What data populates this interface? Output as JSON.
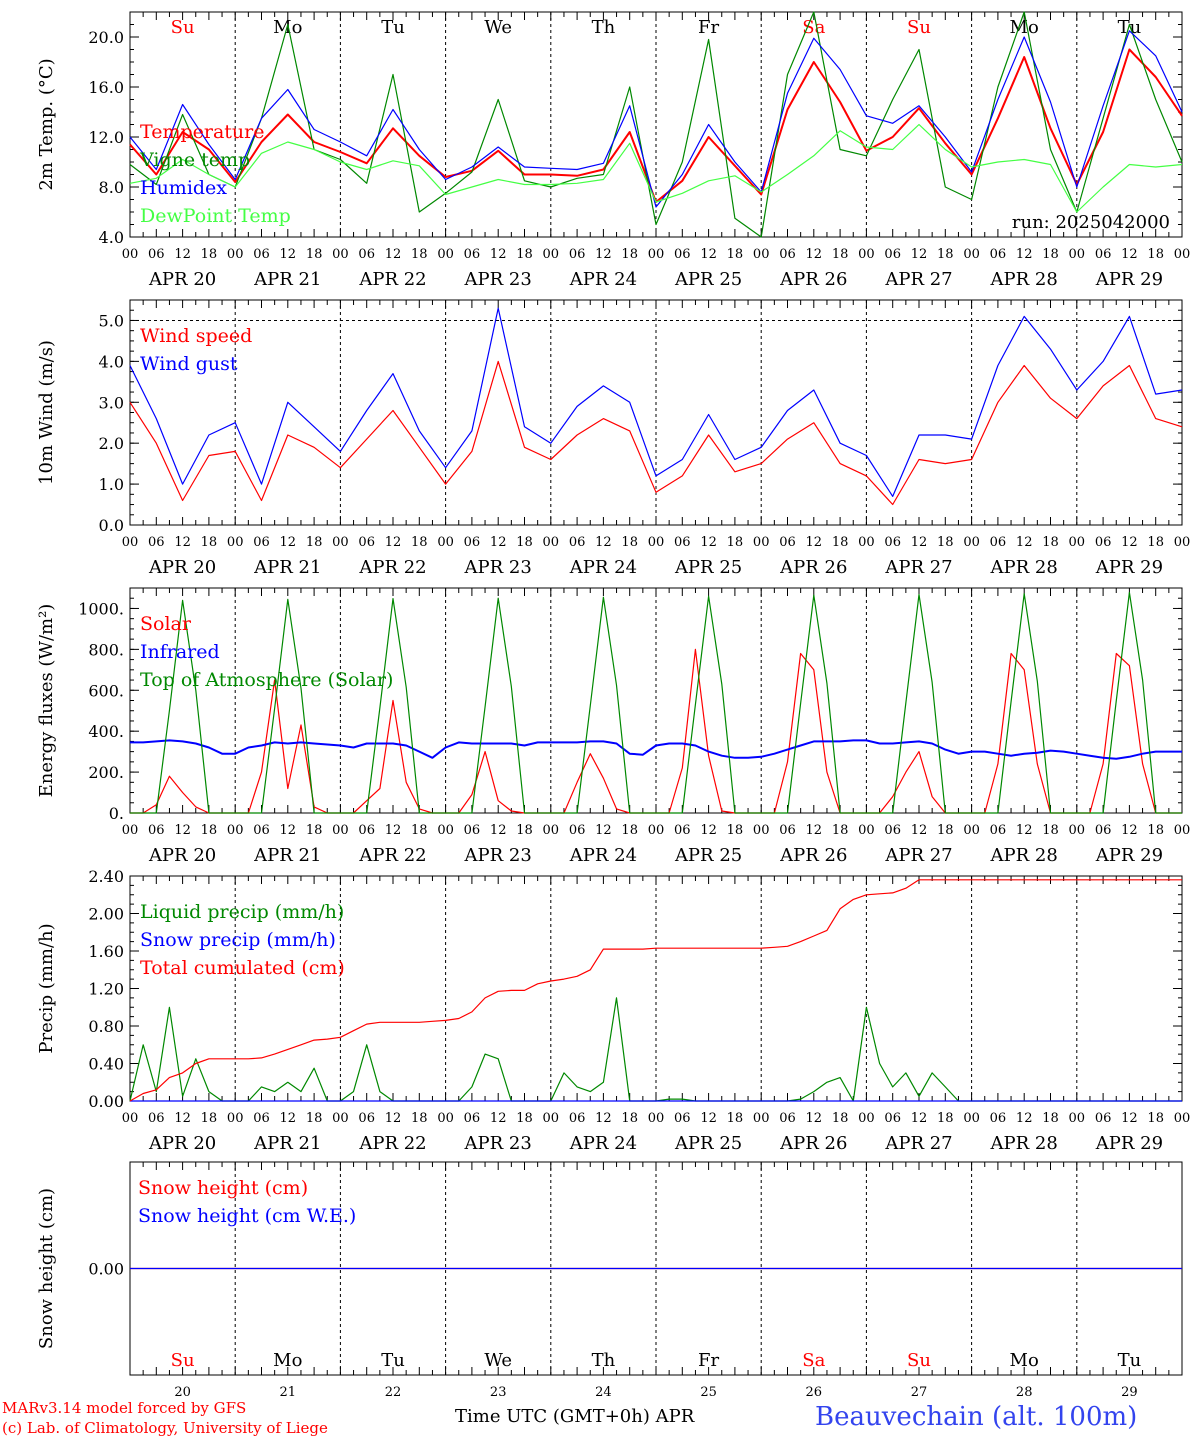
{
  "chart_data": [
    {
      "type": "line",
      "ylabel": "2m Temp. (°C)",
      "ylim": [
        4.0,
        22.0
      ],
      "yticks": [
        "20.0",
        "16.0",
        "12.0",
        "8.0",
        "4.0"
      ],
      "annotation": "run: 2025042000",
      "x_hours": [
        0,
        6,
        12,
        18,
        24,
        30,
        36,
        42,
        48,
        54,
        60,
        66,
        72,
        78,
        84,
        90,
        96,
        102,
        108,
        114,
        120,
        126,
        132,
        138,
        144,
        150,
        156,
        162,
        168,
        174,
        180,
        186,
        192,
        198,
        204,
        210,
        216,
        222,
        228,
        234,
        240
      ],
      "series": [
        {
          "name": "Temperature",
          "color": "#ff0000",
          "values": [
            11.4,
            9.0,
            12.4,
            11.0,
            8.4,
            11.6,
            13.8,
            11.6,
            10.8,
            9.9,
            12.7,
            10.5,
            8.8,
            9.3,
            10.9,
            9.0,
            9.0,
            8.9,
            9.4,
            12.4,
            6.8,
            8.5,
            12.0,
            9.7,
            7.4,
            14.2,
            18.0,
            14.8,
            10.9,
            12.0,
            14.3,
            11.5,
            9.0,
            13.5,
            18.4,
            12.7,
            8.2,
            12.4,
            19.0,
            16.8,
            13.7
          ]
        },
        {
          "name": "Vigne temp",
          "color": "#008800",
          "values": [
            9.8,
            8.2,
            13.8,
            9.0,
            8.0,
            13.5,
            21.0,
            11.0,
            10.2,
            8.3,
            17.0,
            6.0,
            7.5,
            9.2,
            15.0,
            8.5,
            8.0,
            8.7,
            9.0,
            16.0,
            5.0,
            10.0,
            19.8,
            5.5,
            4.0,
            17.0,
            22.0,
            11.0,
            10.5,
            15.0,
            19.0,
            8.0,
            7.0,
            16.0,
            22.0,
            11.0,
            6.0,
            13.5,
            21.0,
            15.0,
            10.0
          ]
        },
        {
          "name": "Humidex",
          "color": "#0000ff",
          "values": [
            12.0,
            9.4,
            14.6,
            11.4,
            8.6,
            13.5,
            15.8,
            12.6,
            11.6,
            10.5,
            14.2,
            11.0,
            8.6,
            9.6,
            11.2,
            9.6,
            9.5,
            9.4,
            9.9,
            14.5,
            6.4,
            9.0,
            13.0,
            10.0,
            7.6,
            15.5,
            19.9,
            17.4,
            13.7,
            13.1,
            14.5,
            12.0,
            9.2,
            15.0,
            20.0,
            14.8,
            8.0,
            14.5,
            20.5,
            18.5,
            14.0
          ]
        },
        {
          "name": "DewPoint Temp",
          "color": "#44ff44",
          "values": [
            8.3,
            8.7,
            10.2,
            9.0,
            8.0,
            10.7,
            11.6,
            11.0,
            10.0,
            9.4,
            10.1,
            9.7,
            7.4,
            8.0,
            8.6,
            8.2,
            8.2,
            8.3,
            8.6,
            11.5,
            6.8,
            7.5,
            8.5,
            8.9,
            7.6,
            9.0,
            10.5,
            12.5,
            11.2,
            11.0,
            13.0,
            11.0,
            9.6,
            10.0,
            10.2,
            9.8,
            6.0,
            8.0,
            9.8,
            9.6,
            9.8
          ]
        }
      ]
    },
    {
      "type": "line",
      "ylabel": "10m Wind (m/s)",
      "ylim": [
        0.0,
        5.5
      ],
      "yticks": [
        "5.0",
        "4.0",
        "3.0",
        "2.0",
        "1.0",
        "0.0"
      ],
      "x_hours": [
        0,
        6,
        12,
        18,
        24,
        30,
        36,
        42,
        48,
        54,
        60,
        66,
        72,
        78,
        84,
        90,
        96,
        102,
        108,
        114,
        120,
        126,
        132,
        138,
        144,
        150,
        156,
        162,
        168,
        174,
        180,
        186,
        192,
        198,
        204,
        210,
        216,
        222,
        228,
        234,
        240
      ],
      "series": [
        {
          "name": "Wind speed",
          "color": "#ff0000",
          "values": [
            3.0,
            2.0,
            0.6,
            1.7,
            1.8,
            0.6,
            2.2,
            1.9,
            1.4,
            2.1,
            2.8,
            1.9,
            1.0,
            1.8,
            4.0,
            1.9,
            1.6,
            2.2,
            2.6,
            2.3,
            0.8,
            1.2,
            2.2,
            1.3,
            1.5,
            2.1,
            2.5,
            1.5,
            1.2,
            0.5,
            1.6,
            1.5,
            1.6,
            3.0,
            3.9,
            3.1,
            2.6,
            3.4,
            3.9,
            2.6,
            2.4
          ]
        },
        {
          "name": "Wind gust",
          "color": "#0000ff",
          "values": [
            3.9,
            2.6,
            1.0,
            2.2,
            2.5,
            1.0,
            3.0,
            2.4,
            1.8,
            2.8,
            3.7,
            2.3,
            1.4,
            2.3,
            5.3,
            2.4,
            2.0,
            2.9,
            3.4,
            3.0,
            1.2,
            1.6,
            2.7,
            1.6,
            1.9,
            2.8,
            3.3,
            2.0,
            1.7,
            0.7,
            2.2,
            2.2,
            2.1,
            3.9,
            5.1,
            4.3,
            3.3,
            4.0,
            5.1,
            3.2,
            3.3
          ]
        }
      ]
    },
    {
      "type": "line",
      "ylabel": "Energy fluxes (W/m²)",
      "ylim": [
        0,
        1100
      ],
      "yticks": [
        "1000.",
        "800.",
        "600.",
        "400.",
        "200.",
        "0."
      ],
      "x_hours": [
        0,
        3,
        6,
        9,
        12,
        15,
        18,
        21,
        24,
        27,
        30,
        33,
        36,
        39,
        42,
        45,
        48,
        51,
        54,
        57,
        60,
        63,
        66,
        69,
        72,
        75,
        78,
        81,
        84,
        87,
        90,
        93,
        96,
        99,
        102,
        105,
        108,
        111,
        114,
        117,
        120,
        123,
        126,
        129,
        132,
        135,
        138,
        141,
        144,
        147,
        150,
        153,
        156,
        159,
        162,
        165,
        168,
        171,
        174,
        177,
        180,
        183,
        186,
        189,
        192,
        195,
        198,
        201,
        204,
        207,
        210,
        213,
        216,
        219,
        222,
        225,
        228,
        231,
        234,
        237,
        240
      ],
      "series": [
        {
          "name": "Solar",
          "color": "#ff0000",
          "values": [
            0,
            0,
            40,
            180,
            100,
            30,
            0,
            0,
            0,
            0,
            200,
            650,
            120,
            430,
            30,
            0,
            0,
            0,
            60,
            120,
            550,
            150,
            20,
            0,
            0,
            0,
            90,
            300,
            60,
            10,
            0,
            0,
            0,
            0,
            150,
            290,
            170,
            20,
            0,
            0,
            0,
            0,
            220,
            800,
            280,
            10,
            0,
            0,
            0,
            0,
            250,
            780,
            700,
            200,
            0,
            0,
            0,
            0,
            80,
            200,
            300,
            80,
            0,
            0,
            0,
            0,
            240,
            780,
            700,
            240,
            0,
            0,
            0,
            0,
            240,
            780,
            720,
            240,
            0,
            0,
            0
          ]
        },
        {
          "name": "Infrared",
          "color": "#0000ff",
          "values": [
            345,
            345,
            350,
            355,
            350,
            340,
            320,
            290,
            290,
            320,
            330,
            345,
            340,
            345,
            340,
            335,
            330,
            320,
            340,
            340,
            340,
            330,
            300,
            270,
            320,
            345,
            340,
            340,
            340,
            340,
            330,
            345,
            345,
            345,
            345,
            350,
            350,
            340,
            290,
            285,
            330,
            340,
            340,
            330,
            300,
            280,
            270,
            270,
            275,
            290,
            310,
            330,
            350,
            350,
            350,
            355,
            355,
            340,
            340,
            345,
            350,
            340,
            310,
            290,
            300,
            300,
            290,
            280,
            290,
            295,
            305,
            300,
            290,
            280,
            270,
            265,
            275,
            290,
            300,
            300,
            300
          ]
        },
        {
          "name": "Top of Atmosphere (Solar)",
          "color": "#008800",
          "values": [
            0,
            0,
            0,
            500,
            1040,
            600,
            0,
            0,
            0,
            0,
            0,
            510,
            1045,
            610,
            0,
            0,
            0,
            0,
            0,
            515,
            1048,
            615,
            0,
            0,
            0,
            0,
            0,
            520,
            1050,
            620,
            0,
            0,
            0,
            0,
            0,
            525,
            1055,
            625,
            0,
            0,
            0,
            0,
            0,
            530,
            1060,
            630,
            0,
            0,
            0,
            0,
            0,
            535,
            1065,
            635,
            0,
            0,
            0,
            0,
            0,
            540,
            1068,
            640,
            0,
            0,
            0,
            0,
            0,
            545,
            1072,
            645,
            0,
            0,
            0,
            0,
            0,
            550,
            1078,
            650,
            0,
            0,
            0
          ]
        }
      ]
    },
    {
      "type": "line",
      "ylabel": "Precip (mm/h)",
      "ylim": [
        0.0,
        2.4
      ],
      "yticks": [
        "2.40",
        "2.00",
        "1.60",
        "1.20",
        "0.80",
        "0.40",
        "0.00"
      ],
      "x_hours": [
        0,
        3,
        6,
        9,
        12,
        15,
        18,
        21,
        24,
        27,
        30,
        33,
        36,
        39,
        42,
        45,
        48,
        51,
        54,
        57,
        60,
        63,
        66,
        69,
        72,
        75,
        78,
        81,
        84,
        87,
        90,
        93,
        96,
        99,
        102,
        105,
        108,
        111,
        114,
        117,
        120,
        123,
        126,
        129,
        132,
        135,
        138,
        141,
        144,
        147,
        150,
        153,
        156,
        159,
        162,
        165,
        168,
        171,
        174,
        177,
        180,
        183,
        186,
        189,
        192,
        195,
        198,
        201,
        204,
        207,
        210,
        213,
        216,
        219,
        222,
        225,
        228,
        231,
        234,
        237,
        240
      ],
      "series": [
        {
          "name": "Liquid precip (mm/h)",
          "color": "#008800",
          "values": [
            0,
            0.6,
            0.1,
            1.0,
            0.05,
            0.45,
            0.1,
            0,
            0,
            0,
            0.15,
            0.1,
            0.2,
            0.1,
            0.35,
            0,
            0,
            0.1,
            0.6,
            0.1,
            0,
            0,
            0,
            0,
            0,
            0,
            0.15,
            0.5,
            0.45,
            0,
            0,
            0,
            0,
            0.3,
            0.15,
            0.1,
            0.2,
            1.1,
            0,
            0,
            0,
            0.02,
            0.02,
            0,
            0,
            0,
            0,
            0,
            0,
            0,
            0,
            0.02,
            0.1,
            0.2,
            0.25,
            0,
            1.0,
            0.4,
            0.15,
            0.3,
            0.05,
            0.3,
            0.15,
            0,
            0,
            0,
            0,
            0,
            0,
            0,
            0,
            0,
            0,
            0,
            0,
            0,
            0,
            0,
            0,
            0,
            0
          ]
        },
        {
          "name": "Snow precip (mm/h)",
          "color": "#0000ff",
          "values": [
            0,
            0,
            0,
            0,
            0,
            0,
            0,
            0,
            0,
            0,
            0,
            0,
            0,
            0,
            0,
            0,
            0,
            0,
            0,
            0,
            0,
            0,
            0,
            0,
            0,
            0,
            0,
            0,
            0,
            0,
            0,
            0,
            0,
            0,
            0,
            0,
            0,
            0,
            0,
            0,
            0,
            0,
            0,
            0,
            0,
            0,
            0,
            0,
            0,
            0,
            0,
            0,
            0,
            0,
            0,
            0,
            0,
            0,
            0,
            0,
            0,
            0,
            0,
            0,
            0,
            0,
            0,
            0,
            0,
            0,
            0,
            0,
            0,
            0,
            0,
            0,
            0,
            0,
            0,
            0,
            0
          ]
        },
        {
          "name": "Total cumulated (cm)",
          "color": "#ff0000",
          "values": [
            0,
            0.08,
            0.12,
            0.25,
            0.3,
            0.4,
            0.45,
            0.45,
            0.45,
            0.45,
            0.46,
            0.5,
            0.55,
            0.6,
            0.65,
            0.66,
            0.68,
            0.75,
            0.82,
            0.84,
            0.84,
            0.84,
            0.84,
            0.85,
            0.86,
            0.88,
            0.95,
            1.1,
            1.17,
            1.18,
            1.18,
            1.25,
            1.28,
            1.3,
            1.33,
            1.4,
            1.62,
            1.62,
            1.62,
            1.62,
            1.63,
            1.63,
            1.63,
            1.63,
            1.63,
            1.63,
            1.63,
            1.63,
            1.63,
            1.64,
            1.65,
            1.7,
            1.76,
            1.82,
            2.05,
            2.15,
            2.2,
            2.21,
            2.22,
            2.27,
            2.36,
            2.36,
            2.36,
            2.36,
            2.36,
            2.36,
            2.36,
            2.36,
            2.36,
            2.36,
            2.36,
            2.36,
            2.36,
            2.36,
            2.36,
            2.36,
            2.36,
            2.36,
            2.36,
            2.36,
            2.36
          ]
        }
      ]
    },
    {
      "type": "line",
      "ylabel": "Snow height (cm)",
      "ylim": [
        -1,
        1
      ],
      "yticks": [
        "0.00"
      ],
      "x_hours": [
        0,
        240
      ],
      "series": [
        {
          "name": "Snow height (cm)",
          "color": "#ff0000",
          "values": [
            0,
            0
          ]
        },
        {
          "name": "Snow height (cm W.E.)",
          "color": "#0000ff",
          "values": [
            0,
            0
          ]
        }
      ]
    }
  ],
  "days": [
    {
      "abbr": "Su",
      "date": "APR 20",
      "num": "20",
      "weekend": true
    },
    {
      "abbr": "Mo",
      "date": "APR 21",
      "num": "21",
      "weekend": false
    },
    {
      "abbr": "Tu",
      "date": "APR 22",
      "num": "22",
      "weekend": false
    },
    {
      "abbr": "We",
      "date": "APR 23",
      "num": "23",
      "weekend": false
    },
    {
      "abbr": "Th",
      "date": "APR 24",
      "num": "24",
      "weekend": false
    },
    {
      "abbr": "Fr",
      "date": "APR 25",
      "num": "25",
      "weekend": false
    },
    {
      "abbr": "Sa",
      "date": "APR 26",
      "num": "26",
      "weekend": true
    },
    {
      "abbr": "Su",
      "date": "APR 27",
      "num": "27",
      "weekend": true
    },
    {
      "abbr": "Mo",
      "date": "APR 28",
      "num": "28",
      "weekend": false
    },
    {
      "abbr": "Tu",
      "date": "APR 29",
      "num": "29",
      "weekend": false
    }
  ],
  "hour_ticks": [
    "00",
    "06",
    "12",
    "18"
  ],
  "hour_end": "00",
  "xlabel": "Time UTC (GMT+0h) APR",
  "station": "Beauvechain (alt. 100m)",
  "credit_line1": "MARv3.14 model forced by GFS",
  "credit_line2": "(c) Lab. of Climatology, University of Liege",
  "colors": {
    "red": "#ff0000",
    "green": "#008800",
    "blue": "#0000ff",
    "lightgreen": "#44ff44",
    "station": "#3344ee"
  }
}
